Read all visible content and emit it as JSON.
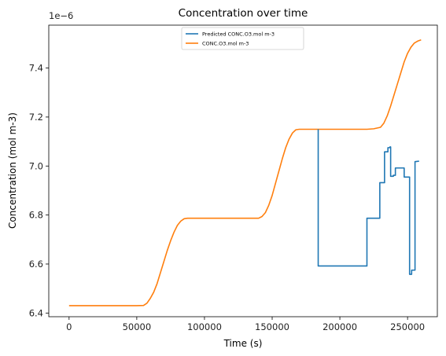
{
  "chart_data": {
    "type": "line",
    "title": "Concentration over time",
    "xlabel": "Time (s)",
    "ylabel": "Concentration (mol m-3)",
    "y_offset_label": "1e−6",
    "xlim": [
      -15000,
      272000
    ],
    "ylim": [
      6.385,
      7.575
    ],
    "x_ticks": [
      0,
      50000,
      100000,
      150000,
      200000,
      250000
    ],
    "x_tick_labels": [
      "0",
      "50000",
      "100000",
      "150000",
      "200000",
      "250000"
    ],
    "y_ticks": [
      6.4,
      6.6,
      6.8,
      7.0,
      7.2,
      7.4
    ],
    "y_tick_labels": [
      "6.4",
      "6.6",
      "6.8",
      "7.0",
      "7.2",
      "7.4"
    ],
    "grid": false,
    "legend_position": "top-center",
    "series": [
      {
        "name": "Predicted CONC.O3.mol m-3",
        "color": "#1f77b4",
        "x": [
          184000,
          184000,
          220000,
          220000,
          229500,
          229500,
          233000,
          233000,
          235500,
          235500,
          237000,
          237000,
          237500,
          237500,
          239500,
          239500,
          241000,
          241000,
          247500,
          247500,
          251500,
          251500,
          253000,
          253000,
          255500,
          255500,
          258500
        ],
        "y": [
          7.15,
          6.592,
          6.592,
          6.787,
          6.787,
          6.932,
          6.932,
          7.058,
          7.058,
          7.075,
          7.075,
          7.078,
          7.078,
          6.958,
          6.958,
          6.962,
          6.962,
          6.992,
          6.992,
          6.955,
          6.955,
          6.558,
          6.558,
          6.575,
          6.575,
          7.018,
          7.02
        ]
      },
      {
        "name": "CONC.O3.mol m-3",
        "color": "#ff7f0e",
        "x": [
          0,
          50000,
          55000,
          57500,
          60000,
          62500,
          65000,
          67500,
          70000,
          72500,
          75000,
          77500,
          80000,
          82500,
          85000,
          87500,
          90000,
          100000,
          120000,
          140000,
          142500,
          145000,
          147500,
          150000,
          152500,
          155000,
          157500,
          160000,
          162500,
          165000,
          167500,
          170000,
          172500,
          175000,
          180000,
          200000,
          220000,
          225000,
          230000,
          232500,
          235000,
          237500,
          240000,
          242500,
          245000,
          247500,
          250000,
          252500,
          255000,
          257500,
          260000
        ],
        "y": [
          6.43,
          6.43,
          6.431,
          6.44,
          6.46,
          6.485,
          6.52,
          6.565,
          6.61,
          6.655,
          6.695,
          6.73,
          6.758,
          6.775,
          6.785,
          6.787,
          6.787,
          6.787,
          6.787,
          6.787,
          6.794,
          6.81,
          6.84,
          6.88,
          6.93,
          6.98,
          7.03,
          7.075,
          7.11,
          7.135,
          7.148,
          7.15,
          7.15,
          7.15,
          7.15,
          7.15,
          7.15,
          7.152,
          7.158,
          7.175,
          7.205,
          7.245,
          7.29,
          7.335,
          7.38,
          7.425,
          7.46,
          7.485,
          7.502,
          7.51,
          7.515
        ]
      }
    ]
  }
}
